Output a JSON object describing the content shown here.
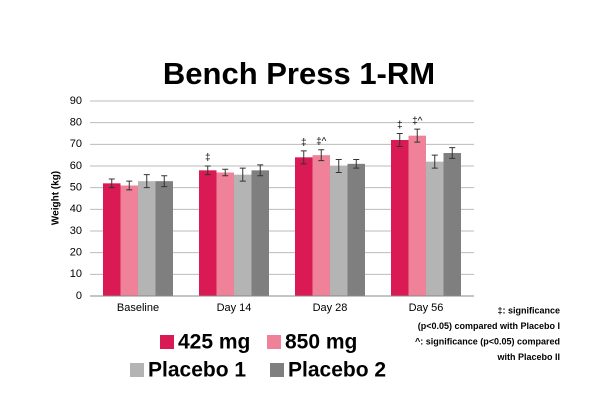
{
  "chart_data": {
    "type": "bar",
    "title": "Bench Press 1-RM",
    "y_label": "Weight (kg)",
    "categories": [
      "Baseline",
      "Day 14",
      "Day 28",
      "Day 56"
    ],
    "series": [
      {
        "name": "425 mg",
        "color": "#d91a55",
        "values": [
          52,
          58,
          64,
          72
        ],
        "errors": [
          2,
          2,
          3,
          3
        ],
        "annotations": [
          null,
          "‡",
          "‡",
          "‡"
        ]
      },
      {
        "name": "850 mg",
        "color": "#ef8298",
        "values": [
          51,
          57,
          65,
          74
        ],
        "errors": [
          2,
          1.5,
          2.5,
          3
        ],
        "annotations": [
          null,
          null,
          "‡^",
          "‡^"
        ]
      },
      {
        "name": "Placebo 1",
        "color": "#b4b4b4",
        "values": [
          53,
          56,
          60,
          62
        ],
        "errors": [
          3,
          3,
          3,
          3
        ]
      },
      {
        "name": "Placebo 2",
        "color": "#7f7f7f",
        "values": [
          53,
          58,
          61,
          66
        ],
        "errors": [
          2.5,
          2.5,
          2,
          2.5
        ]
      }
    ],
    "ylim": [
      0,
      90
    ],
    "yticks": [
      0,
      10,
      20,
      30,
      40,
      50,
      60,
      70,
      80,
      90
    ],
    "grid": true,
    "footnotes": [
      "‡: significance",
      "(p<0.05) compared with Placebo I",
      "^: significance (p<0.05) compared",
      "with Placebo II"
    ]
  }
}
